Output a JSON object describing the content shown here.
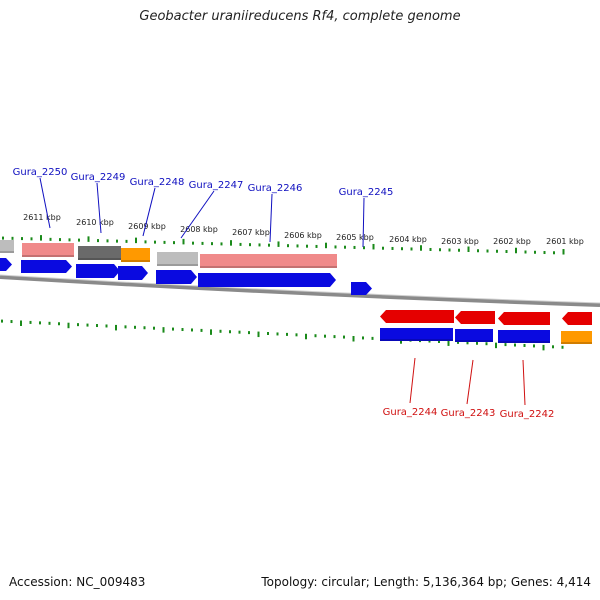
{
  "title": "Geobacter uraniireducens Rf4, complete genome",
  "footer": {
    "accession": "Accession: NC_009483",
    "summary": "Topology: circular; Length: 5,136,364 bp; Genes: 4,414"
  },
  "upper_ruler": {
    "labels": [
      "2611 kbp",
      "2610 kbp",
      "2609 kbp",
      "2608 kbp",
      "2607 kbp",
      "2606 kbp",
      "2605 kbp",
      "2604 kbp",
      "2603 kbp",
      "2602 kbp",
      "2601 kbp"
    ]
  },
  "gene_labels_top": [
    "Gura_2250",
    "Gura_2249",
    "Gura_2248",
    "Gura_2247",
    "Gura_2246",
    "Gura_2245"
  ],
  "gene_labels_bottom": [
    "Gura_2244",
    "Gura_2243",
    "Gura_2242"
  ],
  "colors": {
    "top_label": "#1010c0",
    "bottom_label": "#d01010",
    "tick": "#1a8a1a",
    "blue_gene": "#0a0ae0",
    "red_gene": "#e50000",
    "pink_gene": "#f08a8a",
    "gray_gene": "#bdbdbd",
    "dark_gray_gene": "#6a6a6a",
    "orange_gene": "#ff9900",
    "backbone": "#8a8a8a"
  }
}
